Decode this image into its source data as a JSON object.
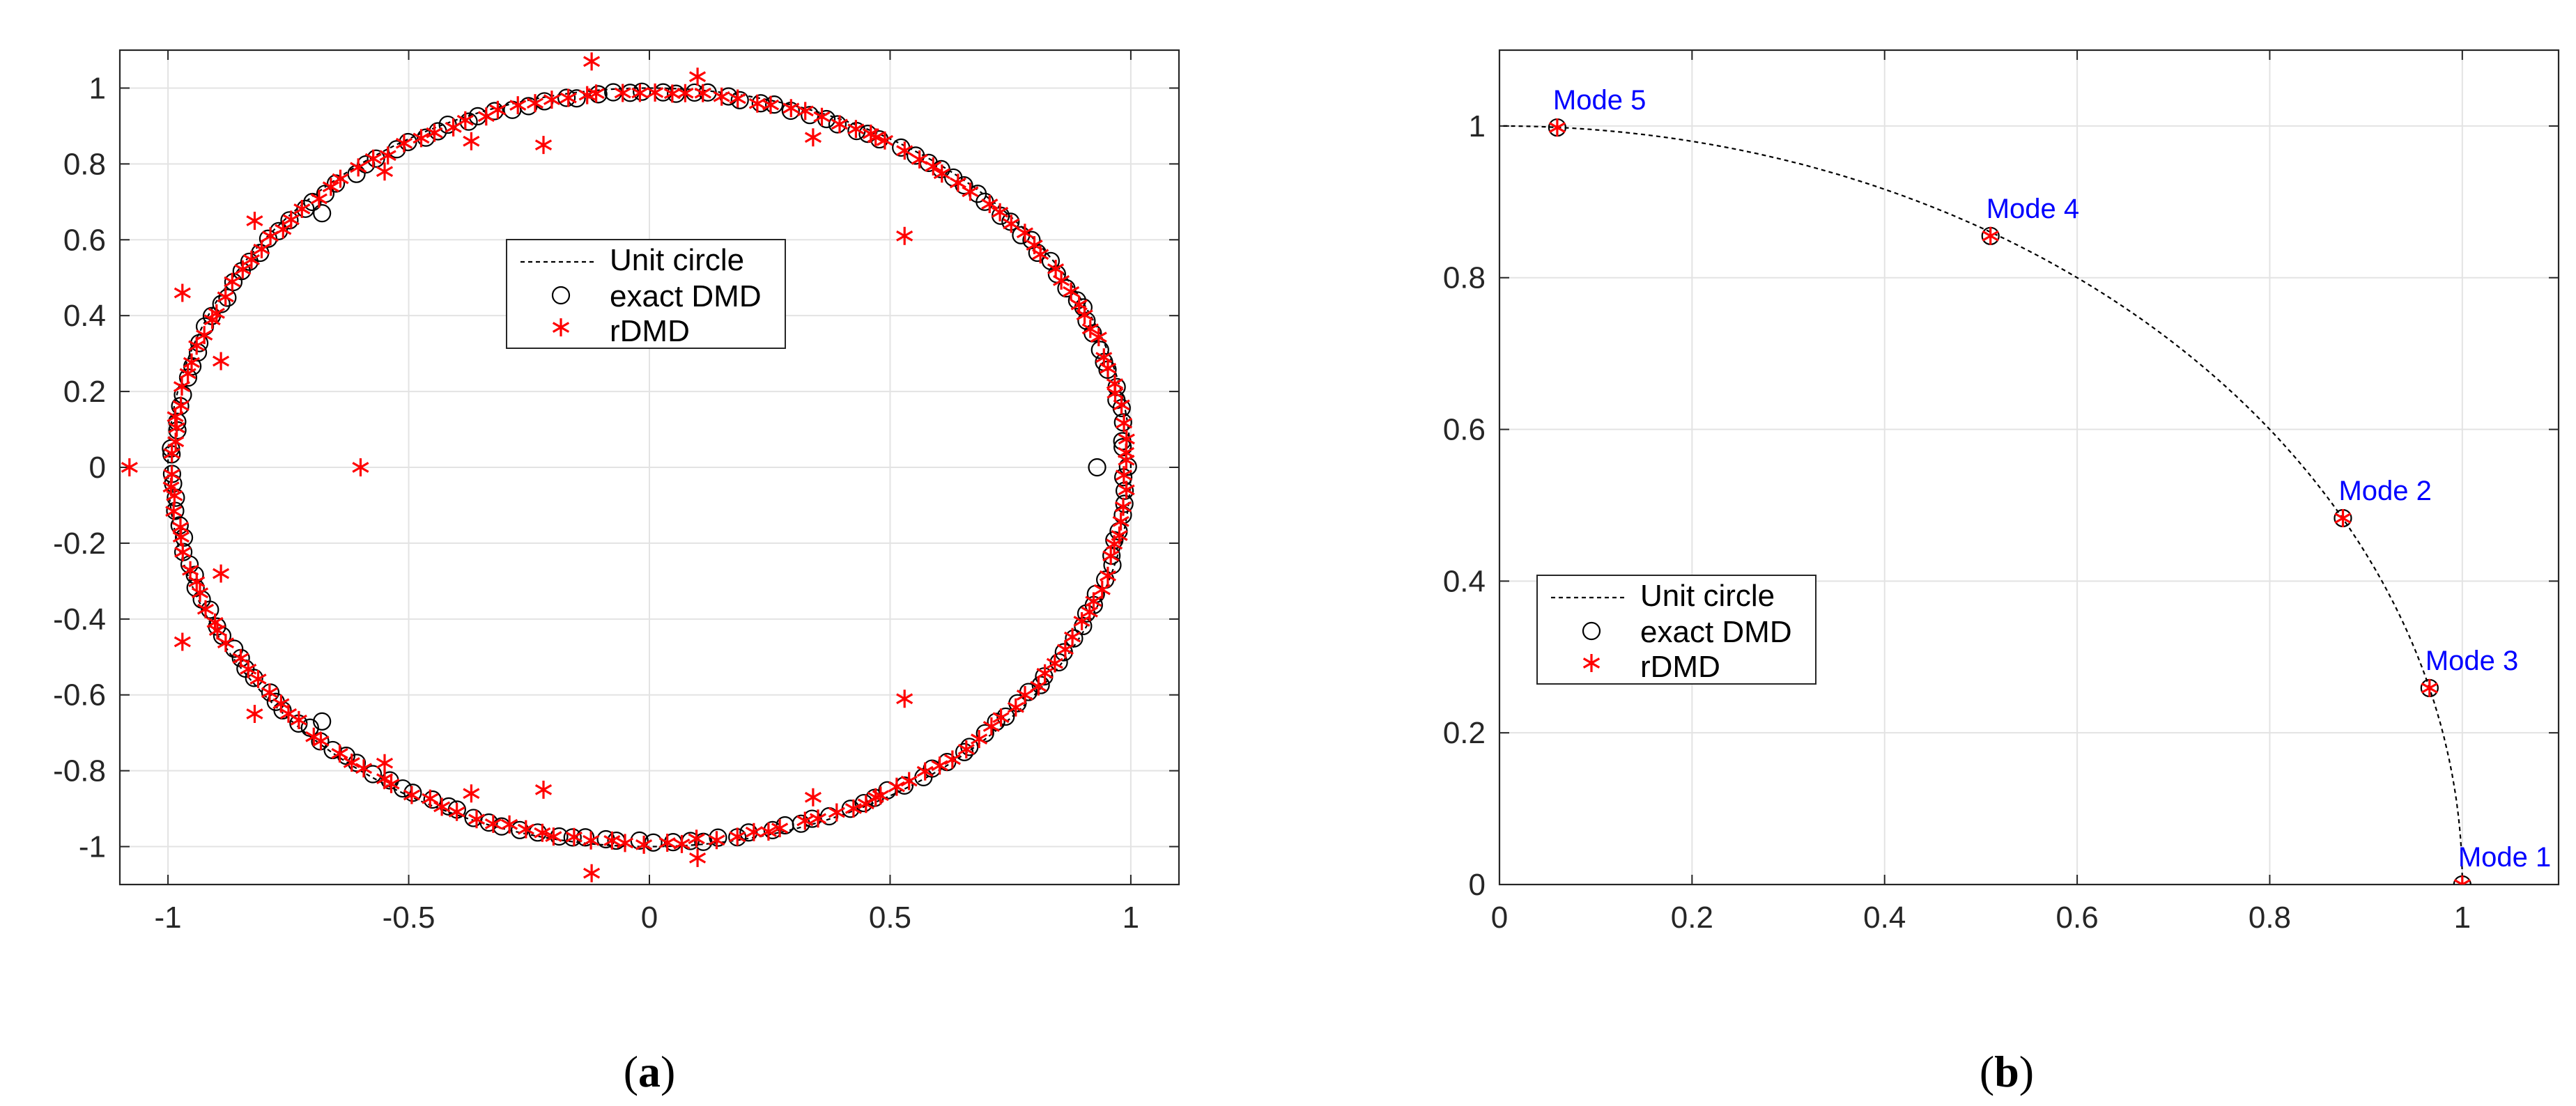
{
  "colors": {
    "exact": "#000000",
    "rdmd": "#ff0000",
    "unit_circle": "#000000",
    "mode_label": "#0000ff",
    "grid": "#e3e3e3",
    "axes": "#262626"
  },
  "chart_data": [
    {
      "id": "a",
      "type": "scatter",
      "caption_open": "(",
      "caption": "a",
      "caption_close": ")",
      "xlim": [
        -1.1,
        1.1
      ],
      "ylim": [
        -1.1,
        1.1
      ],
      "xticks": [
        -1,
        -0.5,
        0,
        0.5,
        1
      ],
      "xtick_labels": [
        "-1",
        "-0.5",
        "0",
        "0.5",
        "1"
      ],
      "yticks": [
        -1,
        -0.8,
        -0.6,
        -0.4,
        -0.2,
        0,
        0.2,
        0.4,
        0.6,
        0.8,
        1
      ],
      "ytick_labels": [
        "-1",
        "-0.8",
        "-0.6",
        "-0.4",
        "-0.2",
        "0",
        "0.2",
        "0.4",
        "0.6",
        "0.8",
        "1"
      ],
      "grid": true,
      "legend": {
        "placement": "center",
        "entries": [
          "Unit circle",
          "exact DMD",
          "rDMD"
        ]
      },
      "series": [
        {
          "name": "Unit circle",
          "kind": "line",
          "description": "full unit circle, dashed",
          "theta_range_deg": [
            0,
            360
          ]
        },
        {
          "name": "exact DMD",
          "kind": "markers",
          "marker": "circle",
          "count_on_circle": 180,
          "radius": 0.99,
          "outliers": [
            [
              0.93,
              0
            ],
            [
              -0.68,
              0.67
            ],
            [
              -0.68,
              -0.67
            ]
          ]
        },
        {
          "name": "rDMD",
          "kind": "markers",
          "marker": "star",
          "count_on_circle": 170,
          "radius": 0.99,
          "outliers": [
            [
              -1.08,
              0
            ],
            [
              -0.6,
              0
            ],
            [
              0.53,
              0.61
            ],
            [
              0.53,
              -0.61
            ],
            [
              -0.97,
              0.46
            ],
            [
              -0.97,
              -0.46
            ],
            [
              -0.89,
              0.28
            ],
            [
              -0.89,
              -0.28
            ],
            [
              -0.12,
              1.07
            ],
            [
              -0.12,
              -1.07
            ],
            [
              0.1,
              1.03
            ],
            [
              0.1,
              -1.03
            ],
            [
              -0.22,
              0.85
            ],
            [
              -0.22,
              -0.85
            ],
            [
              0.34,
              0.87
            ],
            [
              0.34,
              -0.87
            ],
            [
              -0.55,
              0.78
            ],
            [
              -0.55,
              -0.78
            ],
            [
              -0.37,
              0.86
            ],
            [
              -0.37,
              -0.86
            ],
            [
              0.47,
              0.87
            ],
            [
              0.47,
              -0.87
            ],
            [
              -0.82,
              0.65
            ],
            [
              -0.82,
              -0.65
            ]
          ]
        }
      ]
    },
    {
      "id": "b",
      "type": "scatter",
      "caption_open": "(",
      "caption": "b",
      "caption_close": ")",
      "xlim": [
        0,
        1.1
      ],
      "ylim": [
        0,
        1.1
      ],
      "xticks": [
        0,
        0.2,
        0.4,
        0.6,
        0.8,
        1
      ],
      "xtick_labels": [
        "0",
        "0.2",
        "0.4",
        "0.6",
        "0.8",
        "1"
      ],
      "yticks": [
        0,
        0.2,
        0.4,
        0.6,
        0.8,
        1
      ],
      "ytick_labels": [
        "0",
        "0.2",
        "0.4",
        "0.6",
        "0.8",
        "1"
      ],
      "grid": true,
      "legend": {
        "placement": "lower-left",
        "entries": [
          "Unit circle",
          "exact DMD",
          "rDMD"
        ]
      },
      "series": [
        {
          "name": "Unit circle",
          "kind": "line",
          "description": "first-quadrant arc, dashed",
          "theta_range_deg": [
            0,
            90
          ]
        },
        {
          "name": "exact DMD",
          "kind": "markers",
          "marker": "circle",
          "points": [
            [
              1.0,
              0.0
            ],
            [
              0.876,
              0.483
            ],
            [
              0.966,
              0.259
            ],
            [
              0.51,
              0.855
            ],
            [
              0.06,
              0.998
            ]
          ]
        },
        {
          "name": "rDMD",
          "kind": "markers",
          "marker": "star",
          "points": [
            [
              1.0,
              0.0
            ],
            [
              0.876,
              0.483
            ],
            [
              0.966,
              0.259
            ],
            [
              0.51,
              0.855
            ],
            [
              0.06,
              0.998
            ]
          ]
        }
      ],
      "annotations": [
        {
          "text": "Mode 1",
          "x": 1.0,
          "y": 0.0
        },
        {
          "text": "Mode 2",
          "x": 0.876,
          "y": 0.483
        },
        {
          "text": "Mode 3",
          "x": 0.966,
          "y": 0.259
        },
        {
          "text": "Mode 4",
          "x": 0.51,
          "y": 0.855
        },
        {
          "text": "Mode 5",
          "x": 0.06,
          "y": 0.998
        }
      ]
    }
  ]
}
